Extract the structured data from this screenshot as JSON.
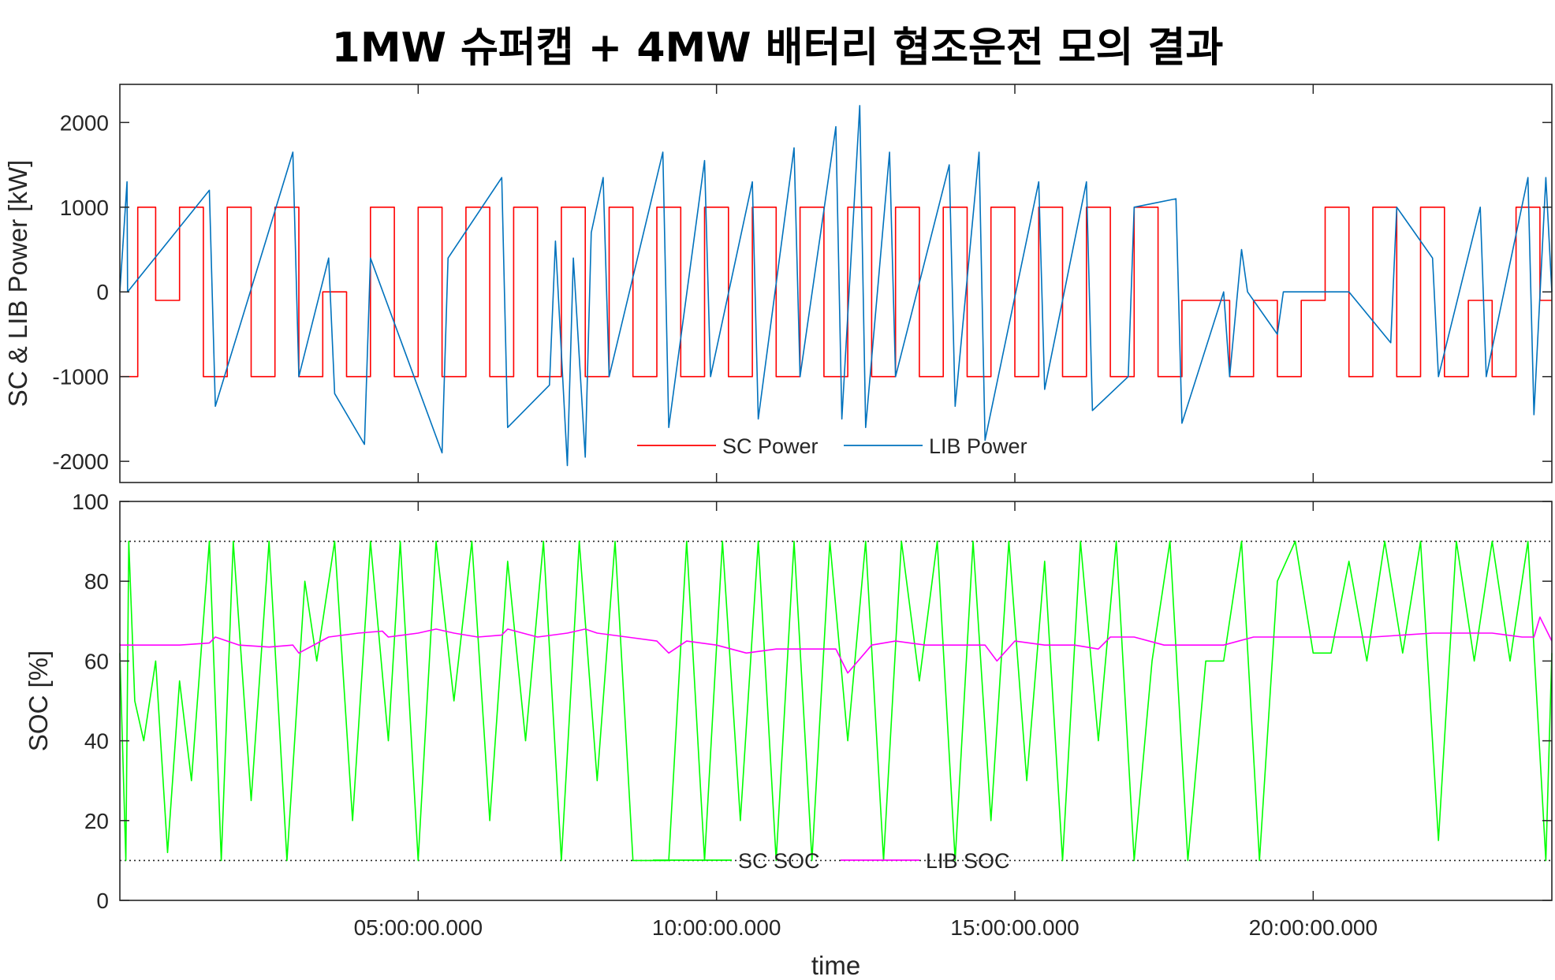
{
  "title": "1MW 슈퍼캡 + 4MW 배터리 협조운전 모의 결과",
  "colors": {
    "sc_power": "#ff0000",
    "lib_power": "#0072bd",
    "sc_soc": "#00ff00",
    "lib_soc": "#ff00ff",
    "axis": "#262626",
    "limit_line": "#262626"
  },
  "chart_data": [
    {
      "type": "line",
      "ylabel": "SC & LIB Power [kW]",
      "xlabel": "",
      "xlim": [
        0,
        24
      ],
      "ylim": [
        -2250,
        2450
      ],
      "yticks": [
        -2000,
        -1000,
        0,
        1000,
        2000
      ],
      "yticklabels": [
        "-2000",
        "-1000",
        "0",
        "1000",
        "2000"
      ],
      "xticks": [
        5,
        10,
        15,
        20
      ],
      "xticklabels": [],
      "grid": false,
      "legend": "bottom-center",
      "legend_orientation": "horizontal",
      "series": [
        {
          "name": "SC Power",
          "color": "#ff0000",
          "pattern": "square pulses between about -1000 and 1000 kW, rest near 0 to -100 kW",
          "x": [
            0.0,
            0.3,
            0.3,
            0.6,
            0.6,
            1.0,
            1.0,
            1.4,
            1.4,
            1.8,
            1.8,
            2.2,
            2.2,
            2.6,
            2.6,
            3.0,
            3.0,
            3.4,
            3.4,
            3.8,
            3.8,
            4.2,
            4.2,
            4.6,
            4.6,
            5.0,
            5.0,
            5.4,
            5.4,
            5.8,
            5.8,
            6.2,
            6.2,
            6.6,
            6.6,
            7.0,
            7.0,
            7.4,
            7.4,
            7.8,
            7.8,
            8.2,
            8.2,
            8.6,
            8.6,
            9.0,
            9.0,
            9.4,
            9.4,
            9.8,
            9.8,
            10.2,
            10.2,
            10.6,
            10.6,
            11.0,
            11.0,
            11.4,
            11.4,
            11.8,
            11.8,
            12.2,
            12.2,
            12.6,
            12.6,
            13.0,
            13.0,
            13.4,
            13.4,
            13.8,
            13.8,
            14.2,
            14.2,
            14.6,
            14.6,
            15.0,
            15.0,
            15.4,
            15.4,
            15.8,
            15.8,
            16.2,
            16.2,
            16.6,
            16.6,
            17.0,
            17.0,
            17.4,
            17.4,
            17.8,
            17.8,
            18.2,
            18.2,
            18.6,
            18.6,
            19.0,
            19.0,
            19.4,
            19.4,
            19.8,
            19.8,
            20.2,
            20.2,
            20.6,
            20.6,
            21.0,
            21.0,
            21.4,
            21.4,
            21.8,
            21.8,
            22.2,
            22.2,
            22.6,
            22.6,
            23.0,
            23.0,
            23.4,
            23.4,
            23.8,
            23.8,
            24.0
          ],
          "values": [
            -1000,
            -1000,
            1000,
            1000,
            -100,
            -100,
            1000,
            1000,
            -1000,
            -1000,
            1000,
            1000,
            -1000,
            -1000,
            1000,
            1000,
            -1000,
            -1000,
            0,
            0,
            -1000,
            -1000,
            1000,
            1000,
            -1000,
            -1000,
            1000,
            1000,
            -1000,
            -1000,
            1000,
            1000,
            -1000,
            -1000,
            1000,
            1000,
            -1000,
            -1000,
            1000,
            1000,
            -1000,
            -1000,
            1000,
            1000,
            -1000,
            -1000,
            1000,
            1000,
            -1000,
            -1000,
            1000,
            1000,
            -1000,
            -1000,
            1000,
            1000,
            -1000,
            -1000,
            1000,
            1000,
            -1000,
            -1000,
            1000,
            1000,
            -1000,
            -1000,
            1000,
            1000,
            -1000,
            -1000,
            1000,
            1000,
            -1000,
            -1000,
            1000,
            1000,
            -1000,
            -1000,
            1000,
            1000,
            -1000,
            -1000,
            1000,
            1000,
            -1000,
            -1000,
            1000,
            1000,
            -1000,
            -1000,
            -100,
            -100,
            -100,
            -100,
            -1000,
            -1000,
            -100,
            -100,
            -1000,
            -1000,
            -100,
            -100,
            1000,
            1000,
            -1000,
            -1000,
            1000,
            1000,
            -1000,
            -1000,
            1000,
            1000,
            -1000,
            -1000,
            -100,
            -100,
            -1000,
            -1000,
            1000,
            1000,
            -100,
            -100
          ]
        },
        {
          "name": "LIB Power",
          "color": "#0072bd",
          "pattern": "mostly 0 with spikes up to about 2200 kW and down to about -2000 kW",
          "x": [
            0.0,
            0.12,
            0.13,
            1.5,
            1.6,
            2.9,
            3.0,
            3.5,
            3.6,
            4.1,
            4.2,
            5.4,
            5.5,
            6.4,
            6.5,
            7.2,
            7.3,
            7.5,
            7.6,
            7.8,
            7.9,
            8.1,
            8.2,
            9.1,
            9.2,
            9.8,
            9.9,
            10.6,
            10.7,
            11.3,
            11.4,
            12.0,
            12.1,
            12.4,
            12.5,
            12.9,
            13.0,
            13.9,
            14.0,
            14.4,
            14.5,
            15.4,
            15.5,
            16.2,
            16.3,
            16.9,
            17.0,
            17.7,
            17.8,
            18.5,
            18.6,
            18.8,
            18.9,
            19.4,
            19.5,
            20.5,
            20.6,
            21.3,
            21.4,
            22.0,
            22.1,
            22.8,
            22.9,
            23.6,
            23.7,
            23.9,
            24.0
          ],
          "values": [
            0,
            1300,
            0,
            1200,
            -1350,
            1650,
            -1000,
            400,
            -1200,
            -1800,
            400,
            -1900,
            400,
            1350,
            -1600,
            -1100,
            600,
            -2050,
            400,
            -1950,
            700,
            1350,
            -1000,
            1650,
            -1600,
            1550,
            -1000,
            1300,
            -1500,
            1700,
            -1000,
            1950,
            -1500,
            2200,
            -1600,
            1650,
            -1000,
            1500,
            -1350,
            1650,
            -1750,
            1300,
            -1150,
            1300,
            -1400,
            -1000,
            1000,
            1100,
            -1550,
            0,
            -1000,
            500,
            0,
            -500,
            0,
            0,
            0,
            -600,
            1000,
            400,
            -1000,
            1000,
            -1000,
            1350,
            -1450,
            1350,
            0
          ]
        }
      ]
    },
    {
      "type": "line",
      "ylabel": "SOC [%]",
      "xlabel": "time",
      "xlim": [
        0,
        24
      ],
      "ylim": [
        0,
        100
      ],
      "yticks": [
        0,
        20,
        40,
        60,
        80,
        100
      ],
      "yticklabels": [
        "0",
        "20",
        "40",
        "60",
        "80",
        "100"
      ],
      "xticks": [
        5,
        10,
        15,
        20
      ],
      "xticklabels": [
        "05:00:00.000",
        "10:00:00.000",
        "15:00:00.000",
        "20:00:00.000"
      ],
      "grid": false,
      "legend": "bottom-center",
      "legend_orientation": "horizontal",
      "reference_lines": [
        {
          "y": 90,
          "style": "dotted"
        },
        {
          "y": 10,
          "style": "dotted"
        }
      ],
      "series": [
        {
          "name": "SC SOC",
          "color": "#00ff00",
          "pattern": "rapid swings between the 10% and 90% limits",
          "x": [
            0.0,
            0.1,
            0.15,
            0.25,
            0.4,
            0.6,
            0.8,
            1.0,
            1.2,
            1.5,
            1.7,
            1.9,
            2.2,
            2.5,
            2.8,
            3.1,
            3.3,
            3.6,
            3.9,
            4.2,
            4.5,
            4.7,
            5.0,
            5.3,
            5.6,
            5.9,
            6.2,
            6.5,
            6.8,
            7.1,
            7.4,
            7.7,
            8.0,
            8.3,
            8.6,
            8.9,
            9.2,
            9.5,
            9.8,
            10.1,
            10.4,
            10.7,
            11.0,
            11.3,
            11.6,
            11.9,
            12.2,
            12.5,
            12.8,
            13.1,
            13.4,
            13.7,
            14.0,
            14.3,
            14.6,
            14.9,
            15.2,
            15.5,
            15.8,
            16.1,
            16.4,
            16.7,
            17.0,
            17.3,
            17.6,
            17.9,
            18.2,
            18.5,
            18.8,
            19.1,
            19.4,
            19.7,
            20.0,
            20.3,
            20.6,
            20.9,
            21.2,
            21.5,
            21.8,
            22.1,
            22.4,
            22.7,
            23.0,
            23.3,
            23.6,
            23.9,
            24.0
          ],
          "values": [
            62,
            10,
            90,
            50,
            40,
            60,
            12,
            55,
            30,
            90,
            10,
            90,
            25,
            90,
            10,
            80,
            60,
            90,
            20,
            90,
            40,
            90,
            10,
            90,
            50,
            90,
            20,
            85,
            40,
            90,
            10,
            90,
            30,
            90,
            10,
            10,
            10,
            90,
            10,
            90,
            20,
            90,
            10,
            90,
            10,
            90,
            40,
            90,
            10,
            90,
            55,
            90,
            10,
            90,
            20,
            90,
            30,
            85,
            10,
            90,
            40,
            90,
            10,
            60,
            90,
            10,
            60,
            60,
            90,
            10,
            80,
            90,
            62,
            62,
            85,
            60,
            90,
            62,
            90,
            15,
            90,
            60,
            90,
            60,
            90,
            10,
            62
          ]
        },
        {
          "name": "LIB SOC",
          "color": "#ff00ff",
          "pattern": "slow drift between about 57% and 71%",
          "x": [
            0.0,
            0.5,
            1.0,
            1.5,
            1.6,
            2.0,
            2.5,
            2.9,
            3.0,
            3.5,
            4.0,
            4.4,
            4.5,
            5.0,
            5.3,
            5.6,
            6.0,
            6.4,
            6.5,
            7.0,
            7.5,
            7.8,
            8.0,
            8.5,
            9.0,
            9.2,
            9.5,
            10.0,
            10.5,
            11.0,
            11.5,
            12.0,
            12.2,
            12.6,
            13.0,
            13.5,
            14.0,
            14.2,
            14.5,
            14.7,
            15.0,
            15.5,
            16.0,
            16.4,
            16.6,
            17.0,
            17.5,
            18.0,
            18.5,
            19.0,
            20.0,
            21.0,
            22.0,
            23.0,
            23.5,
            23.7,
            23.8,
            24.0
          ],
          "values": [
            64,
            64,
            64,
            64.5,
            66,
            64,
            63.5,
            64,
            62,
            66,
            67,
            67.5,
            66,
            67,
            68,
            67,
            66,
            66.5,
            68,
            66,
            67,
            68,
            67,
            66,
            65,
            62,
            65,
            64,
            62,
            63,
            63,
            63,
            57,
            64,
            65,
            64,
            64,
            64,
            64,
            60,
            65,
            64,
            64,
            63,
            66,
            66,
            64,
            64,
            64,
            66,
            66,
            66,
            67,
            67,
            66,
            66,
            71,
            65
          ]
        }
      ]
    }
  ]
}
